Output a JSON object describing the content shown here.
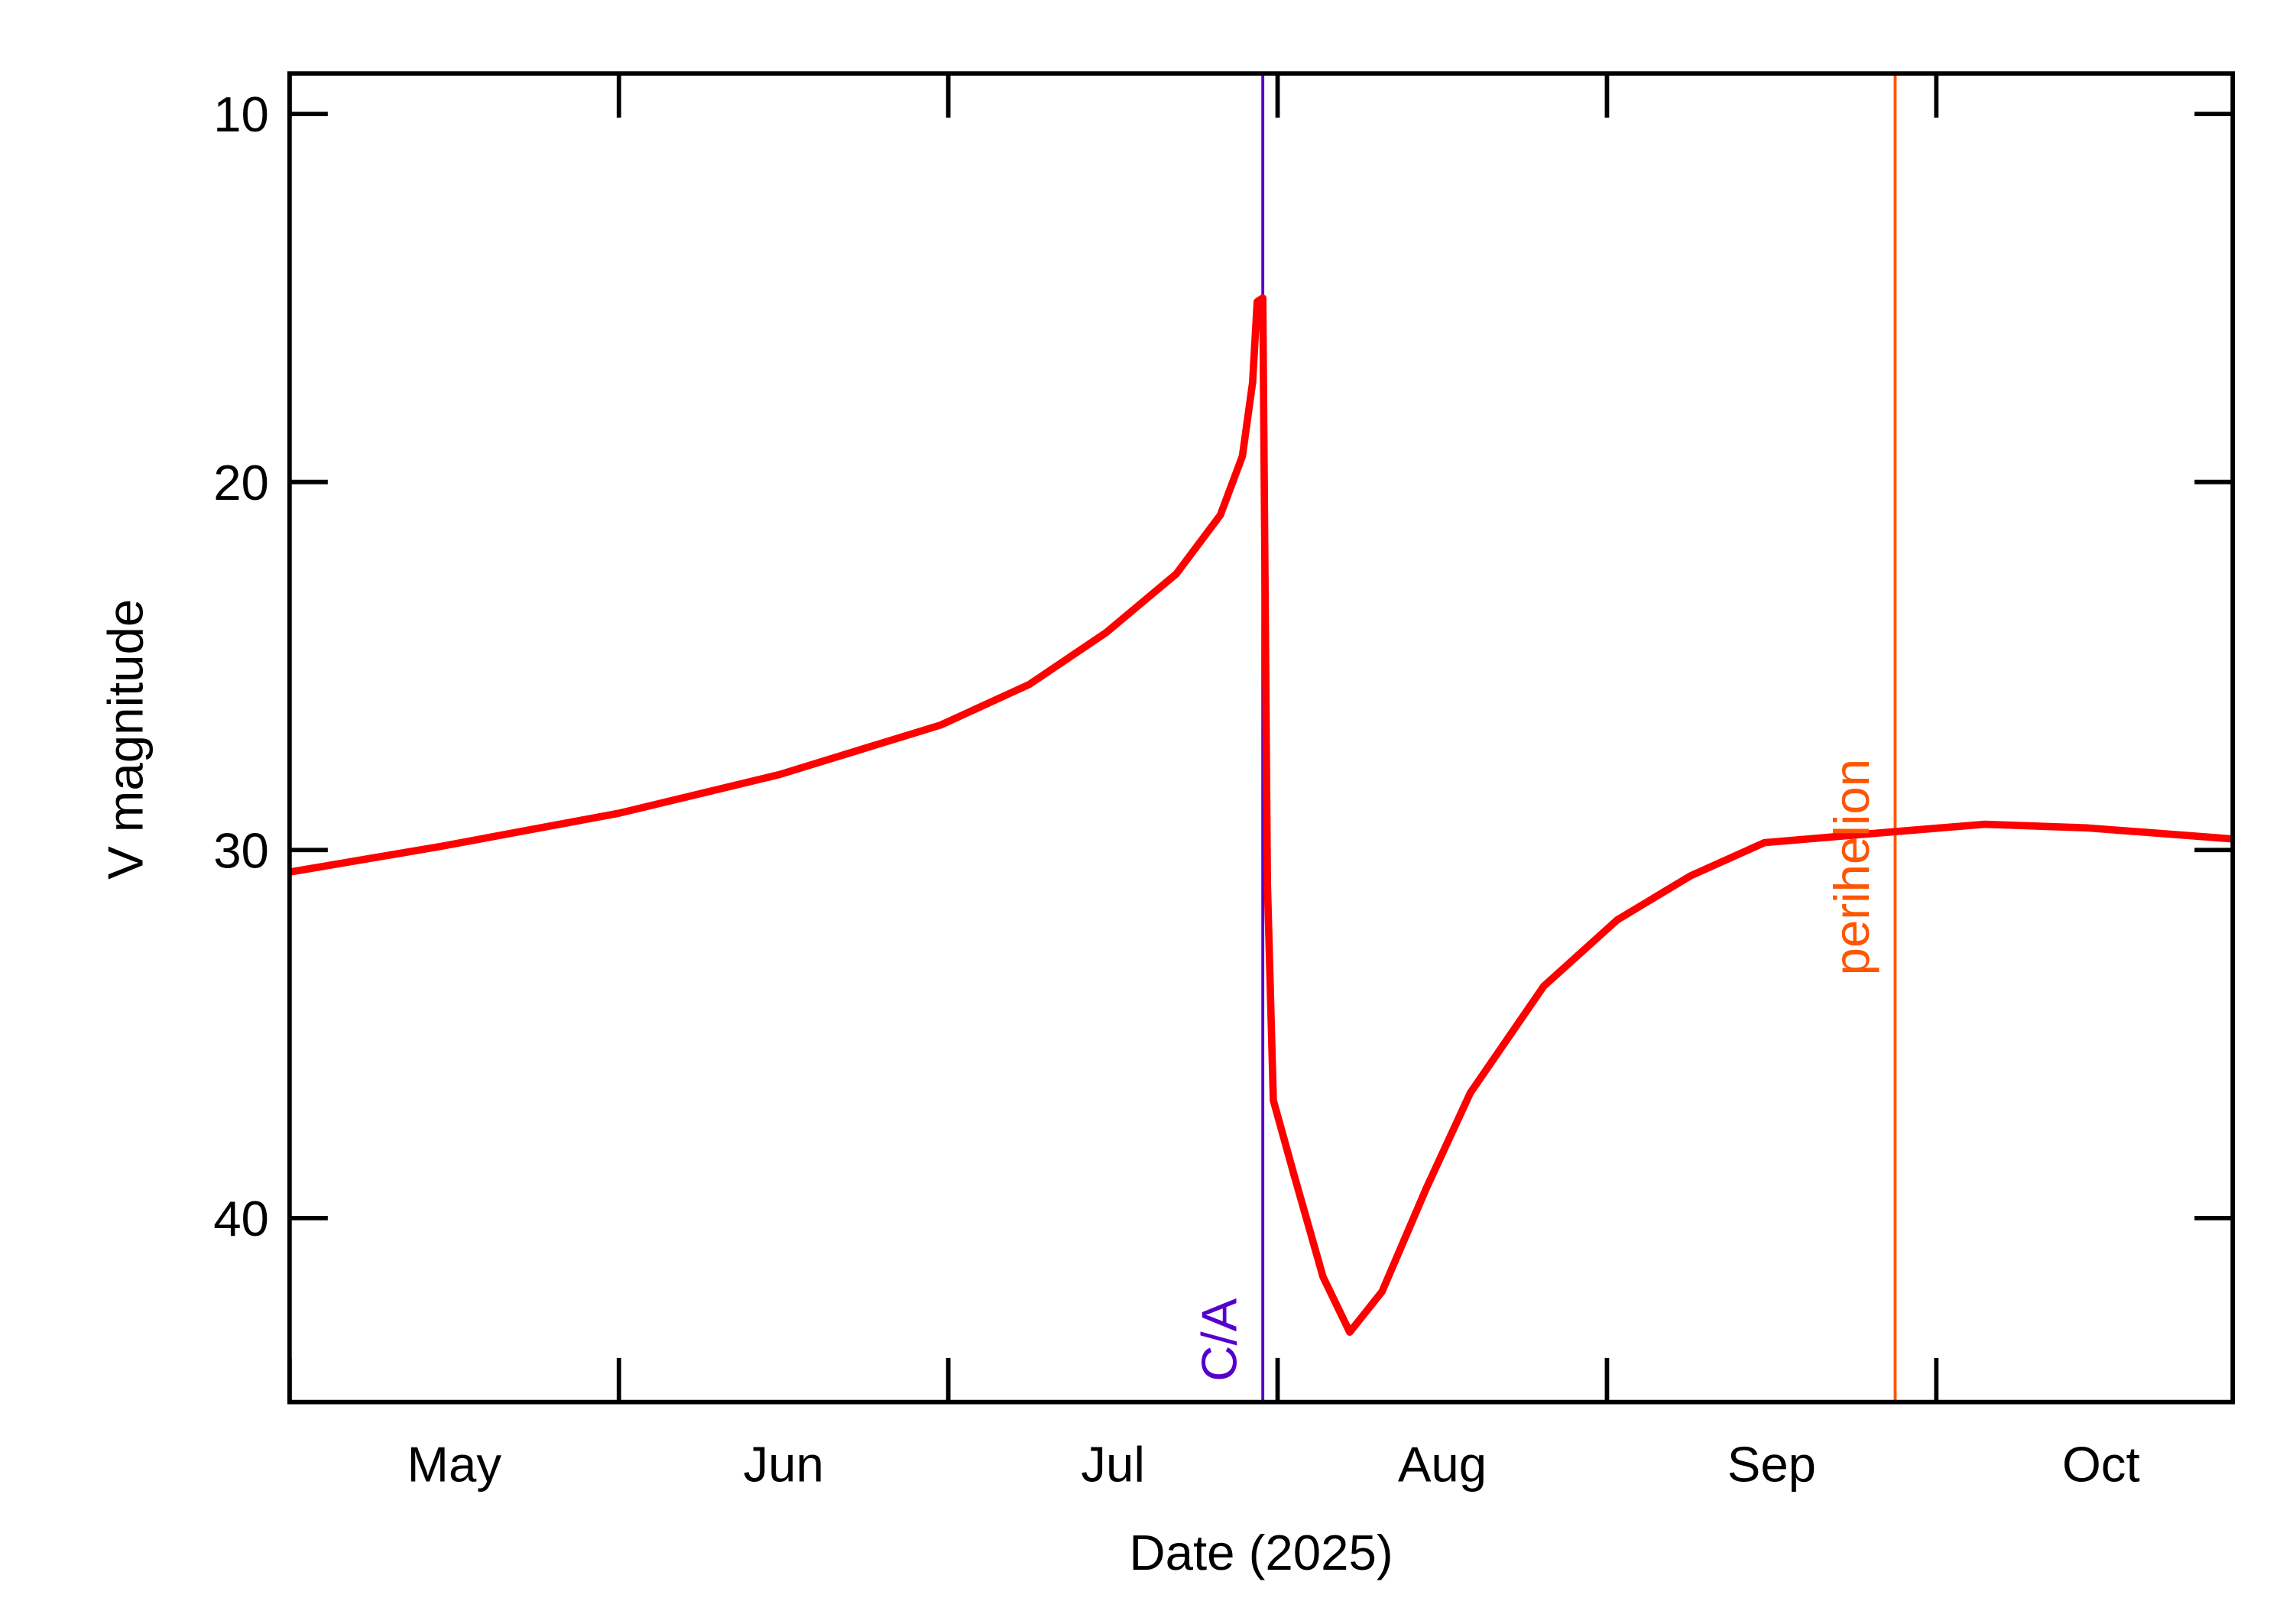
{
  "chart_data": {
    "type": "line",
    "xlabel": "Date (2025)",
    "ylabel": "V magnitude",
    "x": [
      5.0,
      5.46,
      6.0,
      6.487,
      6.978,
      7.246,
      7.478,
      7.692,
      7.826,
      7.893,
      7.924,
      7.938,
      7.955,
      7.969,
      7.987,
      8.049,
      8.138,
      8.219,
      8.317,
      8.451,
      8.585,
      8.808,
      9.031,
      9.254,
      9.478,
      9.875,
      10.147,
      10.46,
      10.902
    ],
    "series": [
      {
        "name": "V",
        "color": "#ff0000",
        "values": [
          30.6,
          29.9,
          29.0,
          27.95,
          26.6,
          25.5,
          24.1,
          22.5,
          20.9,
          19.3,
          17.3,
          15.1,
          15.0,
          30.9,
          36.8,
          38.8,
          41.6,
          43.1,
          42.0,
          39.2,
          36.6,
          33.7,
          31.9,
          30.7,
          29.8,
          29.5,
          29.3,
          29.4,
          29.7
        ]
      }
    ],
    "xlim": [
      5.0,
      10.9
    ],
    "xticks": [
      {
        "value": 5,
        "label": "May"
      },
      {
        "value": 6,
        "label": "Jun"
      },
      {
        "value": 7,
        "label": "Jul"
      },
      {
        "value": 8,
        "label": "Aug"
      },
      {
        "value": 9,
        "label": "Sep"
      },
      {
        "value": 10,
        "label": "Oct"
      }
    ],
    "ylim": [
      8.9,
      45.0
    ],
    "yticks": [
      10,
      20,
      30,
      40
    ],
    "y_inverted": true,
    "markers": [
      {
        "label": "C/A",
        "x": 7.955,
        "color": "#5500cc"
      },
      {
        "label": "perihelion",
        "x": 9.875,
        "color": "#ff5500"
      }
    ]
  }
}
